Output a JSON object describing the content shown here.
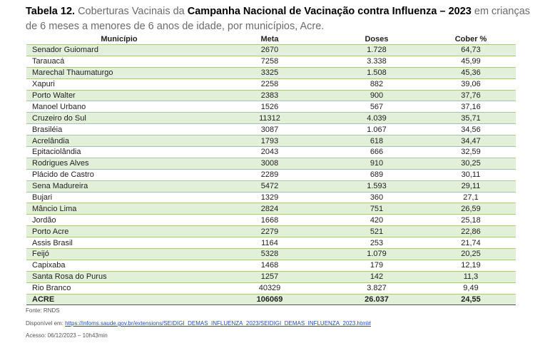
{
  "caption": {
    "label": "Tabela 12.",
    "text1": "Coberturas Vacinais da",
    "campaign": "Campanha Nacional de Vacinação contra Influenza – 2023",
    "text2": "em crianças de 6 meses a menores de 6 anos de idade, por municípios, Acre."
  },
  "table": {
    "headers": [
      "Município",
      "Meta",
      "Doses",
      "Cober %"
    ],
    "rows": [
      [
        "Senador Guiomard",
        "2670",
        "1.728",
        "64,73"
      ],
      [
        "Tarauacá",
        "7258",
        "3.338",
        "45,99"
      ],
      [
        "Marechal Thaumaturgo",
        "3325",
        "1.508",
        "45,36"
      ],
      [
        "Xapuri",
        "2258",
        "882",
        "39,06"
      ],
      [
        "Porto Walter",
        "2383",
        "900",
        "37,76"
      ],
      [
        "Manoel Urbano",
        "1526",
        "567",
        "37,16"
      ],
      [
        "Cruzeiro do Sul",
        "11312",
        "4.039",
        "35,71"
      ],
      [
        "Brasiléia",
        "3087",
        "1.067",
        "34,56"
      ],
      [
        "Acrelândia",
        "1793",
        "618",
        "34,47"
      ],
      [
        "Epitaciolândia",
        "2043",
        "666",
        "32,59"
      ],
      [
        "Rodrigues Alves",
        "3008",
        "910",
        "30,25"
      ],
      [
        "Plácido de Castro",
        "2289",
        "689",
        "30,11"
      ],
      [
        "Sena Madureira",
        "5472",
        "1.593",
        "29,11"
      ],
      [
        "Bujari",
        "1329",
        "360",
        "27,1"
      ],
      [
        "Mâncio Lima",
        "2824",
        "751",
        "26,59"
      ],
      [
        "Jordão",
        "1668",
        "420",
        "25,18"
      ],
      [
        "Porto Acre",
        "2279",
        "521",
        "22,86"
      ],
      [
        "Assis Brasil",
        "1164",
        "253",
        "21,74"
      ],
      [
        "Feijó",
        "5328",
        "1.079",
        "20,25"
      ],
      [
        "Capixaba",
        "1468",
        "179",
        "12,19"
      ],
      [
        "Santa Rosa do Purus",
        "1257",
        "142",
        "11,3"
      ],
      [
        "Rio Branco",
        "40329",
        "3.827",
        "9,49"
      ]
    ],
    "total": [
      "ACRE",
      "106069",
      "26.037",
      "24,55"
    ]
  },
  "footer": {
    "source": "Fonte: RNDS",
    "available_label": "Disponível em:",
    "url": "https://infoms.saude.gov.br/extensions/SEIDIGI_DEMAS_INFLUENZA_2023/SEIDIGI_DEMAS_INFLUENZA_2023.html#",
    "access": "Acesso: 06/12/2023 – 10h43min"
  }
}
